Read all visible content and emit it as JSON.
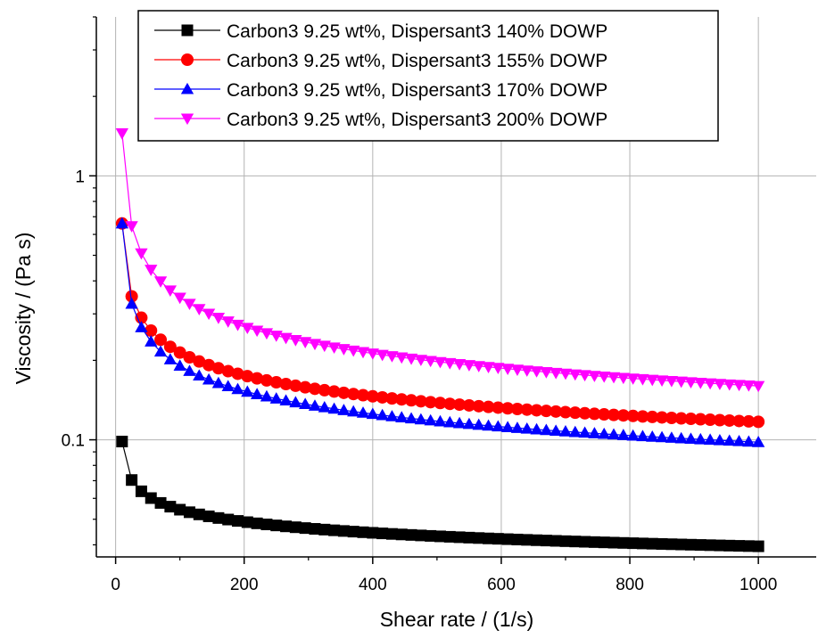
{
  "chart_data": {
    "type": "line",
    "title": "",
    "xlabel": "Shear rate / (1/s)",
    "ylabel": "Viscosity / (Pa s)",
    "xlim": [
      -30,
      1090
    ],
    "ylim": [
      0.036,
      4.0
    ],
    "yscale": "log",
    "xticks": [
      0,
      200,
      400,
      600,
      800,
      1000
    ],
    "xtick_labels": [
      "0",
      "200",
      "400",
      "600",
      "800",
      "1000"
    ],
    "yticks": [
      0.1,
      1
    ],
    "ytick_labels": [
      "0.1",
      "1"
    ],
    "grid": true,
    "legend_position": "top-right",
    "x": [
      10,
      25,
      40,
      55,
      70,
      85,
      100,
      115,
      130,
      145,
      160,
      175,
      190,
      205,
      220,
      235,
      250,
      265,
      280,
      295,
      310,
      325,
      340,
      355,
      370,
      385,
      400,
      415,
      430,
      445,
      460,
      475,
      490,
      505,
      520,
      535,
      550,
      565,
      580,
      595,
      610,
      625,
      640,
      655,
      670,
      685,
      700,
      715,
      730,
      745,
      760,
      775,
      790,
      805,
      820,
      835,
      850,
      865,
      880,
      895,
      910,
      925,
      940,
      955,
      970,
      985,
      1000
    ],
    "series": [
      {
        "name": "Carbon3 9.25 wt%, Dispersant3 140% DOWP",
        "color": "#000000",
        "marker": "square",
        "y_at_x10": 0.0985,
        "y_at_x1000": 0.0395
      },
      {
        "name": "Carbon3 9.25 wt%, Dispersant3 155% DOWP",
        "color": "#ff0000",
        "marker": "circle",
        "y_at_x10": 0.66,
        "y_at_x1000": 0.117
      },
      {
        "name": "Carbon3 9.25 wt%, Dispersant3 170% DOWP",
        "color": "#0000ff",
        "marker": "triangle-up",
        "y_at_x10": 0.66,
        "y_at_x1000": 0.098
      },
      {
        "name": "Carbon3 9.25 wt%, Dispersant3 200% DOWP",
        "color": "#ff00ff",
        "marker": "triangle-down",
        "y_at_x10": 1.45,
        "y_at_x1000": 0.16
      }
    ]
  }
}
